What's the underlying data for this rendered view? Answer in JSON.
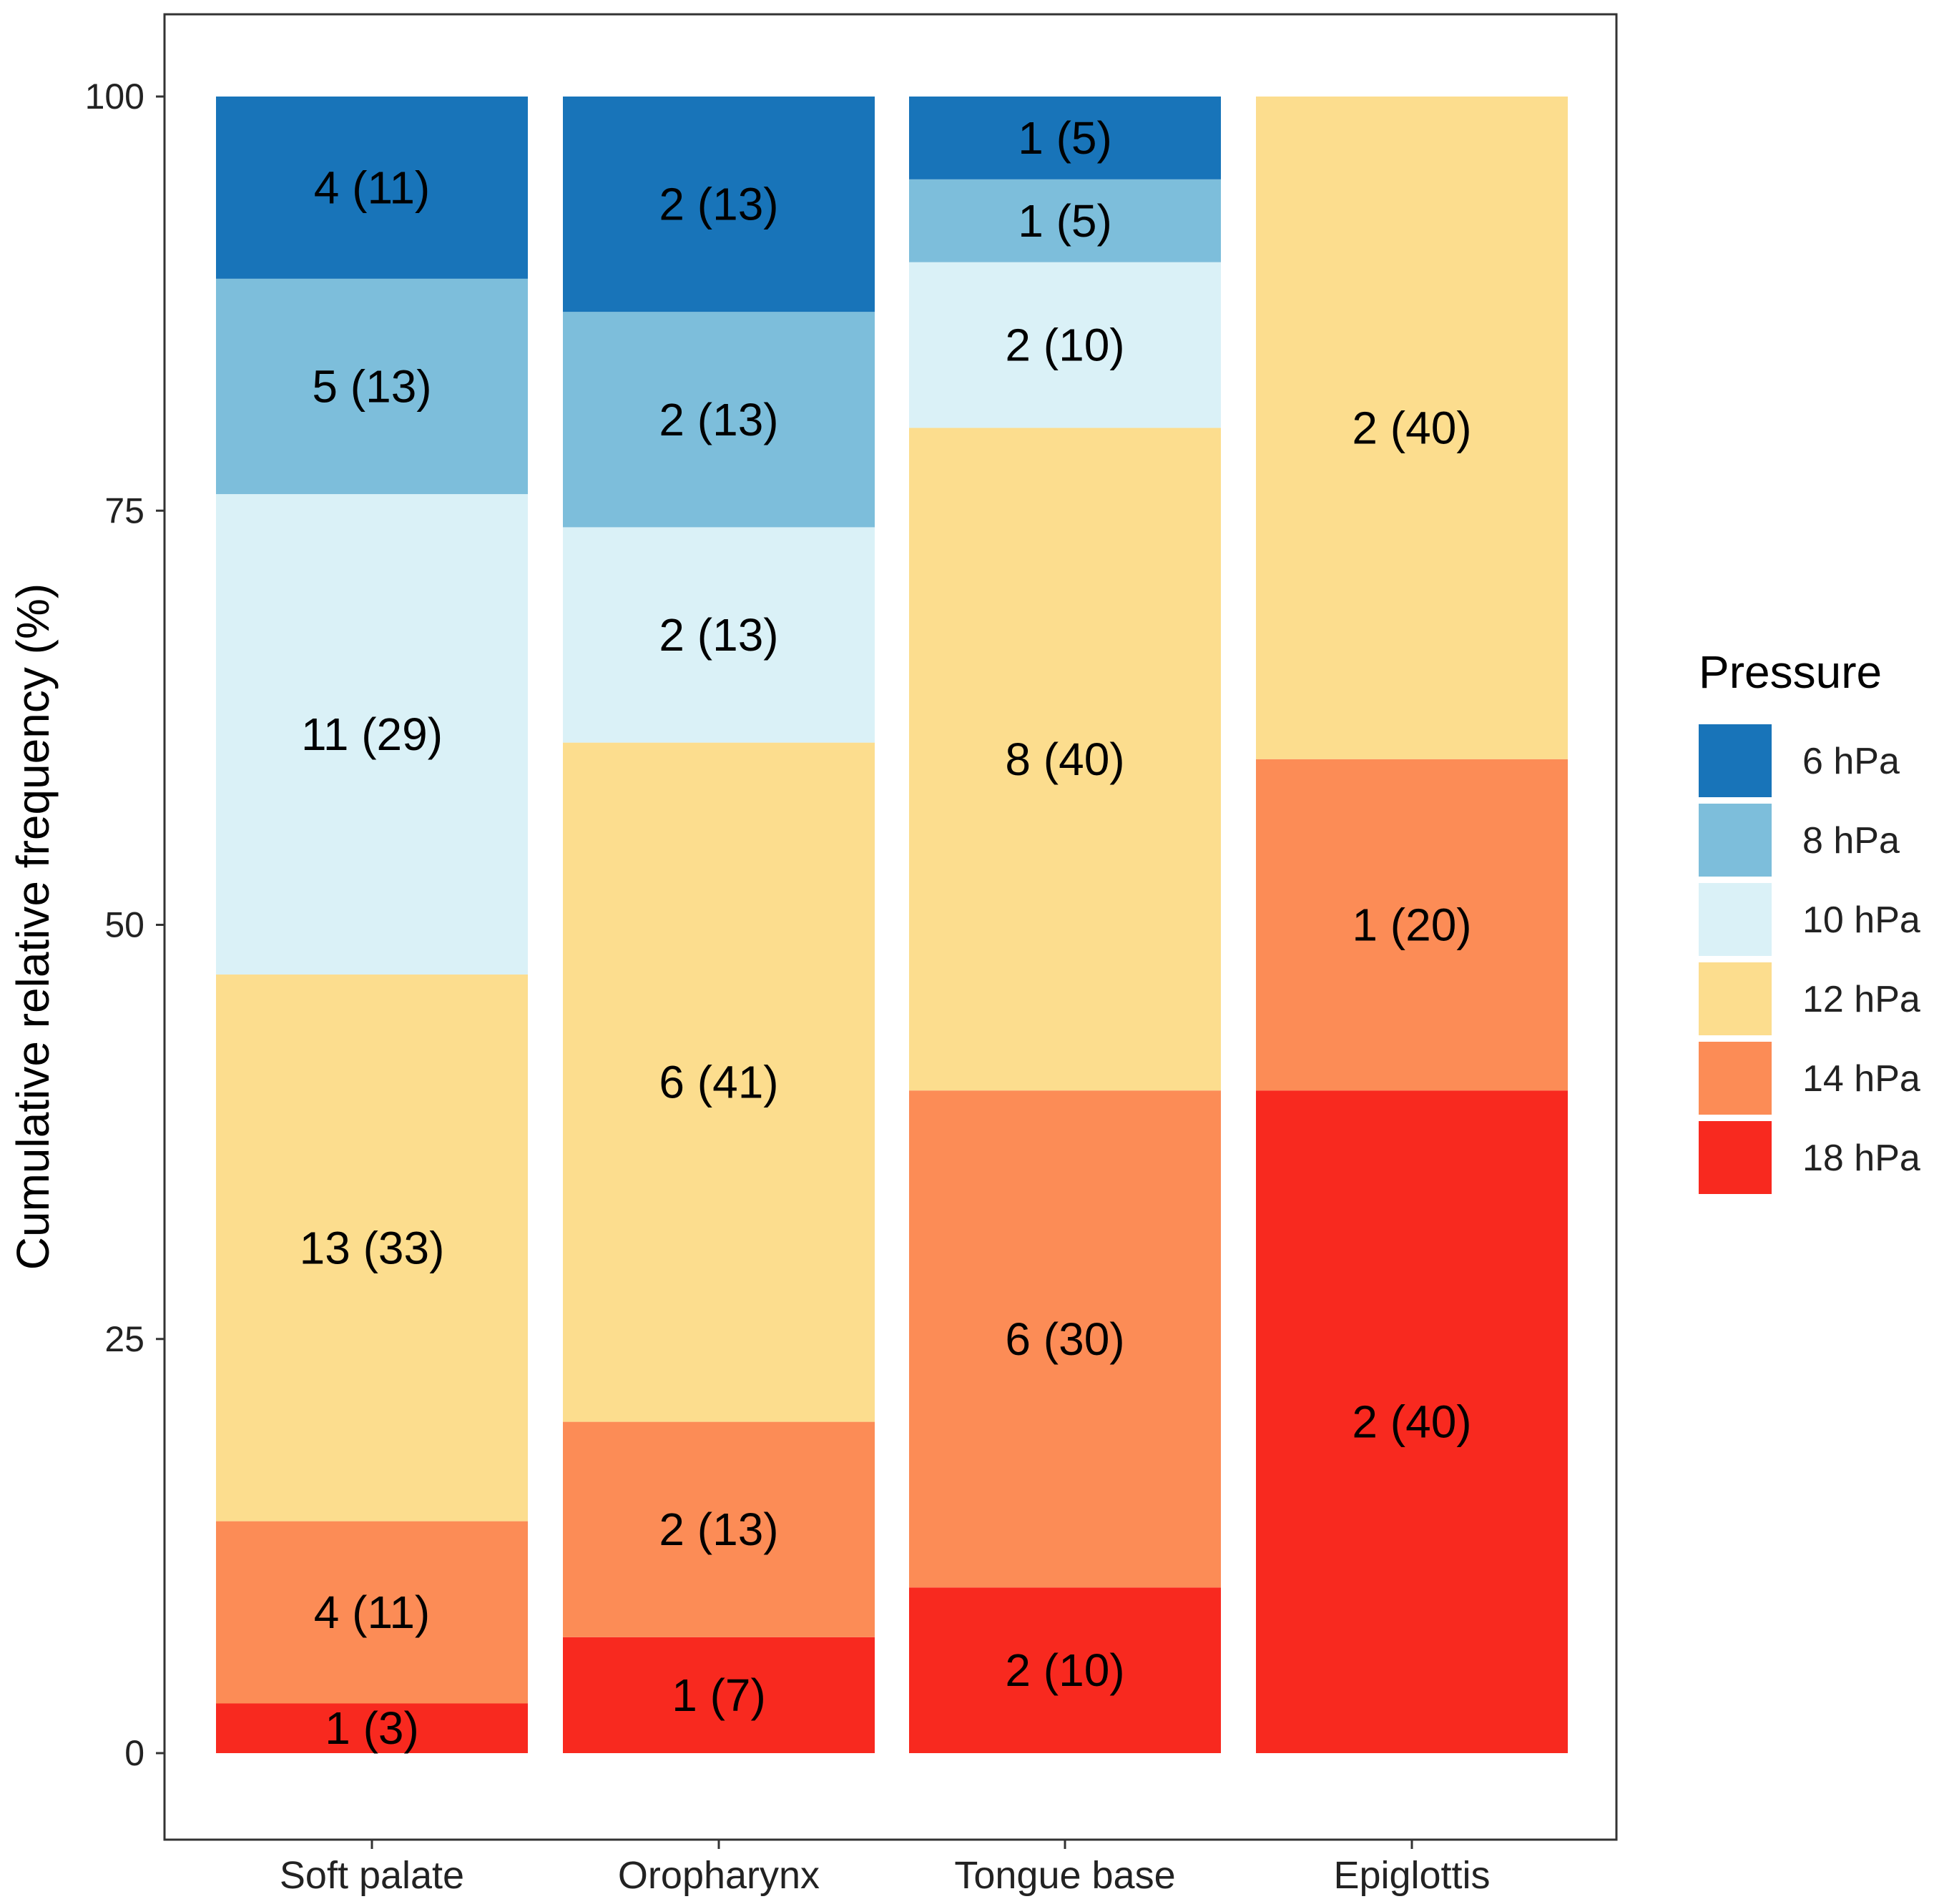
{
  "chart_data": {
    "type": "bar",
    "stacked": true,
    "title": "",
    "xlabel": "",
    "ylabel": "Cumulative relative frequency (%)",
    "ylim": [
      -5,
      105
    ],
    "yticks": [
      0,
      25,
      50,
      75,
      100
    ],
    "grid": false,
    "legend_position": "right",
    "categories": [
      "Soft palate",
      "Oropharynx",
      "Tongue base",
      "Epiglottis"
    ],
    "series": [
      {
        "name": "18 hPa",
        "color": "#F8291F",
        "values": [
          3,
          7,
          10,
          40
        ],
        "labels": [
          "1 (3)",
          "1 (7)",
          "2 (10)",
          "2 (40)"
        ]
      },
      {
        "name": "14 hPa",
        "color": "#FC8C56",
        "values": [
          11,
          13,
          30,
          20
        ],
        "labels": [
          "4 (11)",
          "2 (13)",
          "6 (30)",
          "1 (20)"
        ]
      },
      {
        "name": "12 hPa",
        "color": "#FCDD8E",
        "values": [
          33,
          41,
          40,
          40
        ],
        "labels": [
          "13 (33)",
          "6 (41)",
          "8 (40)",
          "2 (40)"
        ]
      },
      {
        "name": "10 hPa",
        "color": "#DAF1F7",
        "values": [
          29,
          13,
          10,
          0
        ],
        "labels": [
          "11 (29)",
          "2 (13)",
          "2 (10)",
          ""
        ]
      },
      {
        "name": "8 hPa",
        "color": "#7DBEDB",
        "values": [
          13,
          13,
          5,
          0
        ],
        "labels": [
          "5 (13)",
          "2 (13)",
          "1 (5)",
          ""
        ]
      },
      {
        "name": "6 hPa",
        "color": "#1874B9",
        "values": [
          11,
          13,
          5,
          0
        ],
        "labels": [
          "4 (11)",
          "2 (13)",
          "1 (5)",
          ""
        ]
      }
    ],
    "legend": {
      "title": "Pressure",
      "entries": [
        "6 hPa",
        "8 hPa",
        "10 hPa",
        "12 hPa",
        "14 hPa",
        "18 hPa"
      ]
    }
  }
}
